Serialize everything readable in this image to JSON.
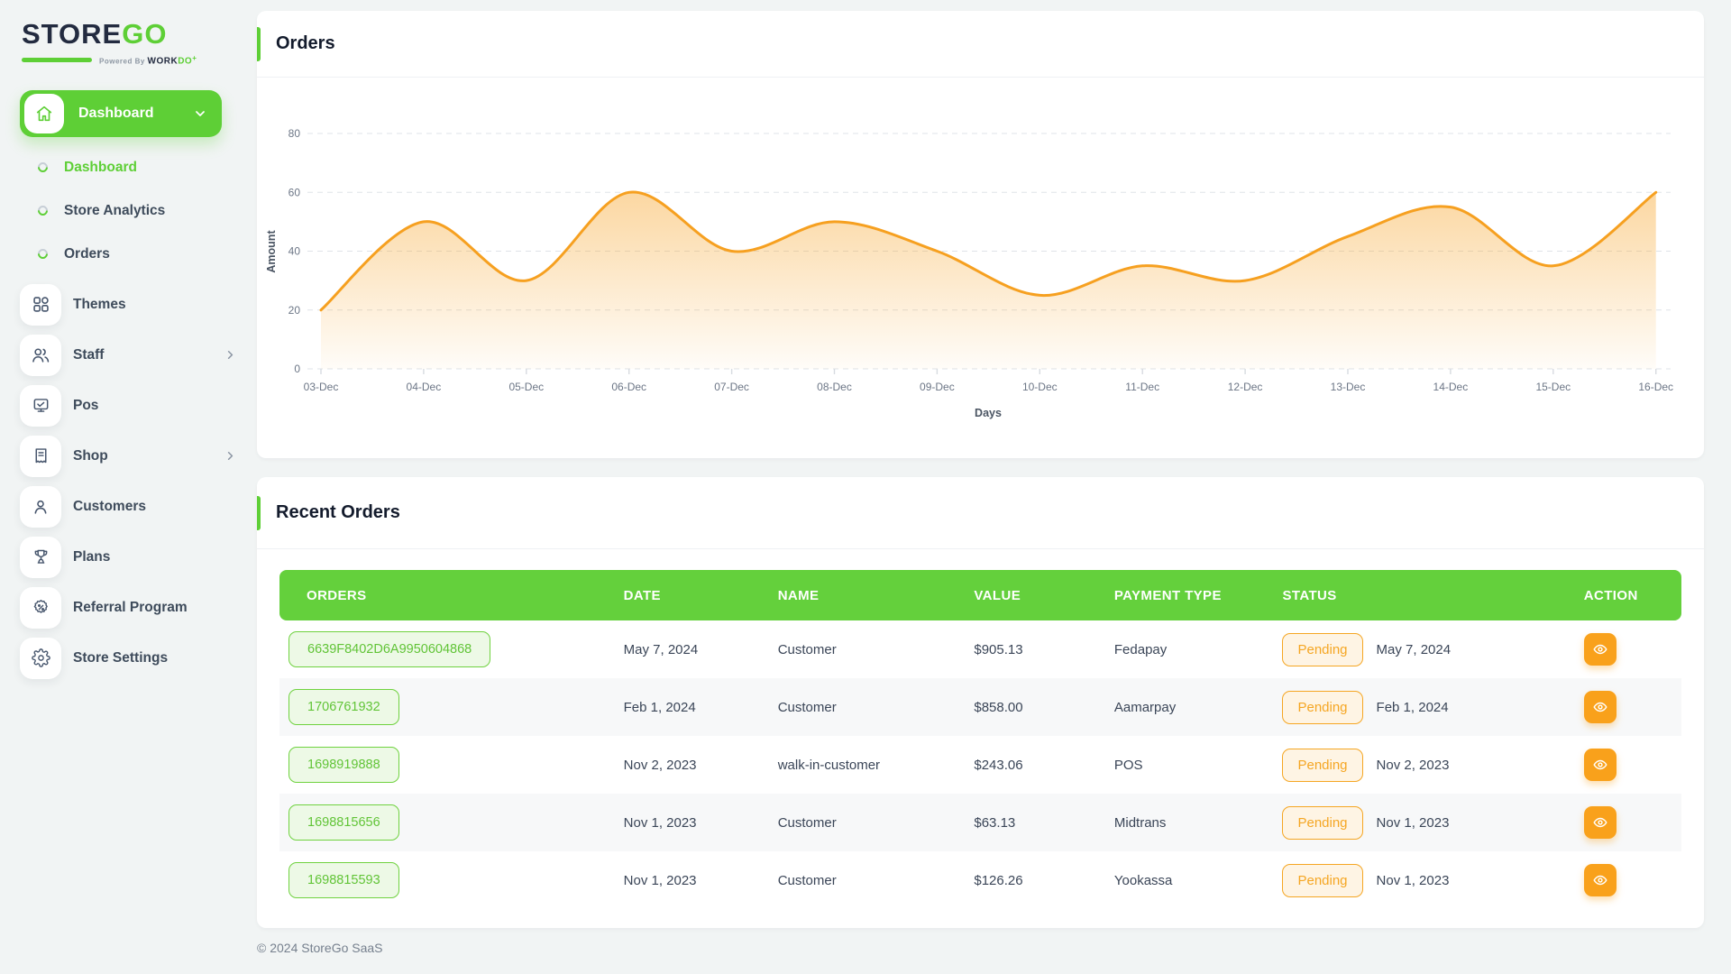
{
  "app": {
    "brand_store": "STORE",
    "brand_go": "GO",
    "powered_prefix": "Powered By",
    "powered_work": "WORK",
    "powered_do": "DO",
    "footer": "© 2024 StoreGo SaaS"
  },
  "colors": {
    "primary_green": "#5ecf36",
    "table_header_green": "#64d03c",
    "chart_orange": "#f6a020",
    "status_orange": "#f5a623",
    "action_orange": "#f9a11b",
    "text_dark": "#3a4557",
    "page_bg": "#f1f4f4"
  },
  "sidebar": {
    "dashboard_parent": {
      "label": "Dashboard",
      "icon": "home-icon"
    },
    "submenu": [
      {
        "label": "Dashboard",
        "active": true
      },
      {
        "label": "Store Analytics",
        "active": false
      },
      {
        "label": "Orders",
        "active": false
      }
    ],
    "items": [
      {
        "label": "Themes",
        "icon": "grid-icon",
        "chevron": false
      },
      {
        "label": "Staff",
        "icon": "users-icon",
        "chevron": true
      },
      {
        "label": "Pos",
        "icon": "pos-monitor-icon",
        "chevron": false
      },
      {
        "label": "Shop",
        "icon": "receipt-icon",
        "chevron": true
      },
      {
        "label": "Customers",
        "icon": "user-icon",
        "chevron": false
      },
      {
        "label": "Plans",
        "icon": "trophy-icon",
        "chevron": false
      },
      {
        "label": "Referral Program",
        "icon": "discount-badge-icon",
        "chevron": false
      },
      {
        "label": "Store Settings",
        "icon": "gear-icon",
        "chevron": false
      }
    ]
  },
  "orders_card": {
    "title": "Orders"
  },
  "chart_data": {
    "type": "area",
    "title": "Orders",
    "categories": [
      "03-Dec",
      "04-Dec",
      "05-Dec",
      "06-Dec",
      "07-Dec",
      "08-Dec",
      "09-Dec",
      "10-Dec",
      "11-Dec",
      "12-Dec",
      "13-Dec",
      "14-Dec",
      "15-Dec",
      "16-Dec"
    ],
    "values": [
      20,
      50,
      30,
      60,
      40,
      50,
      40,
      25,
      35,
      30,
      45,
      55,
      35,
      60
    ],
    "xlabel": "Days",
    "ylabel": "Amount",
    "ylim": [
      0,
      80
    ],
    "yticks": [
      0,
      20,
      40,
      60,
      80
    ],
    "grid": "dashed-horizontal",
    "legend": "none",
    "smooth": true
  },
  "recent_orders": {
    "title": "Recent Orders",
    "columns": [
      "ORDERS",
      "DATE",
      "NAME",
      "VALUE",
      "PAYMENT TYPE",
      "STATUS",
      "ACTION"
    ],
    "rows": [
      {
        "order_id": "6639F8402D6A9950604868",
        "date": "May 7, 2024",
        "name": "Customer",
        "value": "$905.13",
        "payment_type": "Fedapay",
        "status": "Pending",
        "status_date": "May 7, 2024"
      },
      {
        "order_id": "1706761932",
        "date": "Feb 1, 2024",
        "name": "Customer",
        "value": "$858.00",
        "payment_type": "Aamarpay",
        "status": "Pending",
        "status_date": "Feb 1, 2024"
      },
      {
        "order_id": "1698919888",
        "date": "Nov 2, 2023",
        "name": "walk-in-customer",
        "value": "$243.06",
        "payment_type": "POS",
        "status": "Pending",
        "status_date": "Nov 2, 2023"
      },
      {
        "order_id": "1698815656",
        "date": "Nov 1, 2023",
        "name": "Customer",
        "value": "$63.13",
        "payment_type": "Midtrans",
        "status": "Pending",
        "status_date": "Nov 1, 2023"
      },
      {
        "order_id": "1698815593",
        "date": "Nov 1, 2023",
        "name": "Customer",
        "value": "$126.26",
        "payment_type": "Yookassa",
        "status": "Pending",
        "status_date": "Nov 1, 2023"
      }
    ]
  }
}
